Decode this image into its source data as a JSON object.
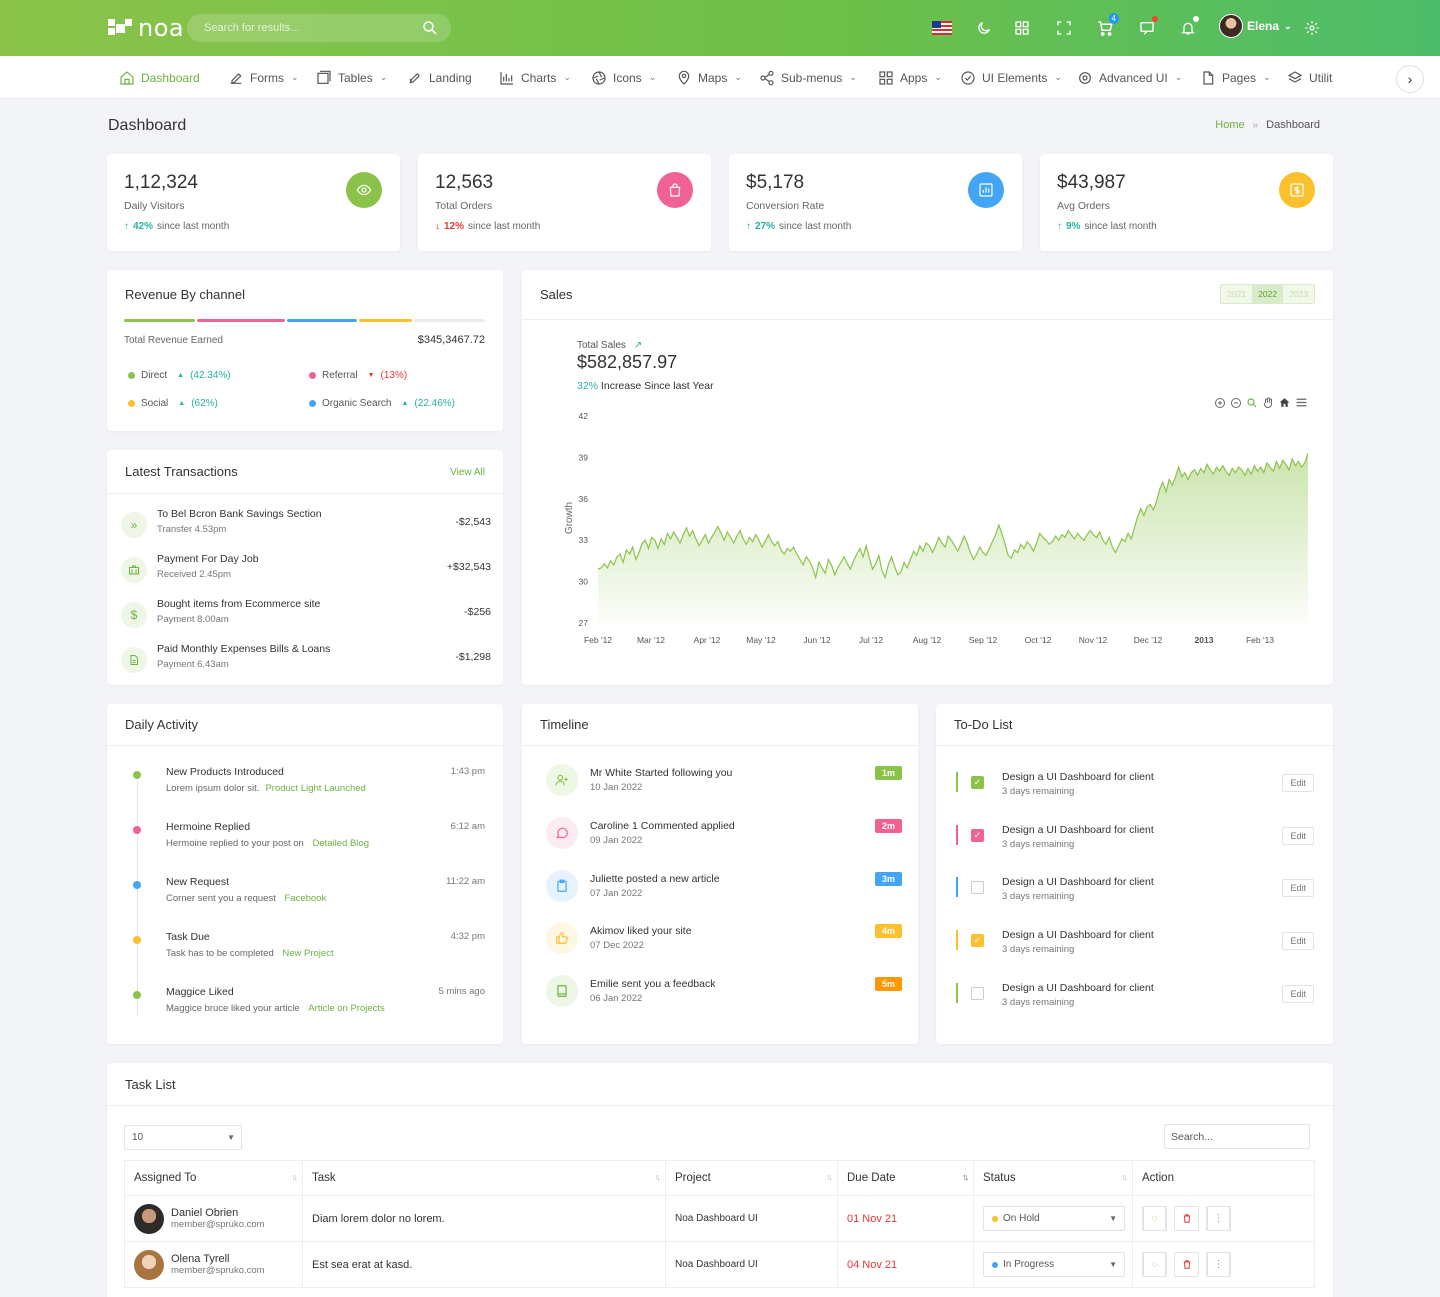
{
  "header": {
    "logo_text": "noa",
    "search_placeholder": "Search for results...",
    "cart_count": "4",
    "user_name": "Elena"
  },
  "nav": {
    "items": [
      {
        "label": "Dashboard",
        "icon": "home-icon"
      },
      {
        "label": "Forms",
        "icon": "edit-icon"
      },
      {
        "label": "Tables",
        "icon": "table-icon"
      },
      {
        "label": "Landing",
        "icon": "rocket-icon"
      },
      {
        "label": "Charts",
        "icon": "chart-icon"
      },
      {
        "label": "Icons",
        "icon": "aperture-icon"
      },
      {
        "label": "Maps",
        "icon": "map-pin-icon"
      },
      {
        "label": "Sub-menus",
        "icon": "share-icon"
      },
      {
        "label": "Apps",
        "icon": "grid-icon"
      },
      {
        "label": "UI Elements",
        "icon": "badge-icon"
      },
      {
        "label": "Advanced UI",
        "icon": "settings-icon"
      },
      {
        "label": "Pages",
        "icon": "file-icon"
      },
      {
        "label": "Utilit",
        "icon": "layers-icon"
      }
    ]
  },
  "page": {
    "title": "Dashboard",
    "breadcrumb_home": "Home",
    "breadcrumb_current": "Dashboard"
  },
  "stats": [
    {
      "value": "1,12,324",
      "label": "Daily Visitors",
      "pct": "42%",
      "since": "since last month",
      "color": "#8bc34a"
    },
    {
      "value": "12,563",
      "label": "Total Orders",
      "pct": "12%",
      "since": "since last month",
      "color": "#f06292"
    },
    {
      "value": "$5,178",
      "label": "Conversion Rate",
      "pct": "27%",
      "since": "since last month",
      "color": "#42a5f5"
    },
    {
      "value": "$43,987",
      "label": "Avg Orders",
      "pct": "9%",
      "since": "since last month",
      "color": "#fbc02d"
    }
  ],
  "revenue": {
    "title": "Revenue By channel",
    "total_label": "Total Revenue Earned",
    "total_value": "$345,3467.72",
    "channels": [
      {
        "name": "Direct",
        "pct": "(42.34%)",
        "color": "#8bc34a"
      },
      {
        "name": "Referral",
        "pct": "(13%)",
        "color": "#f06292"
      },
      {
        "name": "Social",
        "pct": "(62%)",
        "color": "#fbc02d"
      },
      {
        "name": "Organic Search",
        "pct": "(22.46%)",
        "color": "#42a5f5"
      }
    ]
  },
  "transactions": {
    "title": "Latest Transactions",
    "view_all": "View All",
    "items": [
      {
        "pre": "To Bel Bcron Bank ",
        "bold": "Savings Section",
        "sub": "Transfer 4.53pm",
        "amount": "-$2,543"
      },
      {
        "pre": "Payment For  ",
        "bold": "Day Job",
        "sub": "Received 2.45pm",
        "amount": "+$32,543"
      },
      {
        "pre": "Bought items from ",
        "bold": "Ecommerce site",
        "sub": "Payment 8.00am",
        "amount": "-$256"
      },
      {
        "pre": "Paid Monthly Expenses ",
        "bold": "Bills & Loans",
        "sub": "Payment 6.43am",
        "amount": "-$1,298"
      }
    ]
  },
  "sales": {
    "title": "Sales",
    "years": [
      "2021",
      "2022",
      "2023"
    ],
    "total_label": "Total Sales",
    "total_value": "$582,857.97",
    "increase_pct": "32%",
    "increase_text": " Increase Since last Year"
  },
  "chart_data": {
    "type": "area",
    "title": "",
    "xlabel": "",
    "ylabel": "Growth",
    "ylim": [
      27,
      42
    ],
    "yticks": [
      27,
      30,
      33,
      36,
      39,
      42
    ],
    "xticks": [
      "Feb '12",
      "Mar '12",
      "Apr '12",
      "May '12",
      "Jun '12",
      "Jul '12",
      "Aug '12",
      "Sep '12",
      "Oct '12",
      "Nov '12",
      "Dec '12",
      "2013",
      "Feb '13"
    ],
    "series": [
      {
        "values": [
          30.9,
          31.0,
          31.3,
          31.0,
          31.5,
          31.2,
          31.8,
          32.0,
          31.4,
          32.3,
          32.0,
          32.5,
          31.6,
          32.1,
          32.8,
          33.0,
          32.4,
          33.2,
          33.0,
          32.4,
          33.1,
          32.7,
          33.5,
          33.1,
          33.6,
          33.2,
          32.8,
          33.4,
          33.9,
          33.3,
          33.7,
          33.1,
          32.6,
          33.0,
          33.4,
          32.8,
          33.2,
          33.6,
          34.0,
          33.5,
          33.0,
          33.6,
          33.2,
          32.8,
          33.3,
          33.7,
          33.1,
          32.7,
          33.2,
          32.9,
          33.4,
          33.0,
          32.5,
          32.9,
          33.4,
          32.9,
          32.6,
          32.9,
          32.3,
          32.0,
          32.4,
          32.2,
          32.5,
          32.0,
          31.6,
          31.2,
          31.8,
          31.5,
          31.0,
          30.3,
          31.4,
          31.0,
          30.6,
          31.6,
          31.2,
          30.5,
          31.0,
          31.4,
          31.8,
          31.3,
          30.9,
          31.5,
          32.0,
          32.4,
          31.8,
          32.6,
          31.7,
          30.9,
          31.3,
          31.9,
          30.8,
          30.3,
          31.2,
          31.8,
          31.1,
          30.5,
          30.7,
          31.4,
          31.0,
          31.6,
          32.2,
          31.9,
          32.6,
          32.2,
          32.8,
          32.6,
          32.1,
          32.6,
          33.2,
          32.8,
          32.5,
          33.3,
          33.0,
          32.6,
          32.2,
          32.7,
          33.3,
          32.8,
          32.1,
          31.6,
          32.0,
          32.5,
          32.1,
          31.9,
          32.4,
          32.9,
          33.4,
          34.1,
          33.5,
          32.7,
          31.9,
          31.7,
          32.3,
          32.1,
          32.7,
          32.4,
          32.9,
          32.6,
          32.2,
          32.8,
          33.5,
          33.2,
          33.0,
          32.7,
          32.9,
          33.3,
          33.0,
          33.4,
          33.2,
          33.7,
          33.4,
          33.1,
          33.5,
          33.2,
          33.0,
          33.4,
          33.7,
          33.4,
          33.2,
          33.6,
          33.0,
          32.7,
          33.2,
          32.5,
          32.1,
          32.6,
          33.1,
          32.9,
          33.5,
          33.1,
          33.9,
          34.7,
          35.3,
          34.8,
          35.4,
          35.6,
          35.2,
          35.8,
          36.7,
          37.2,
          36.5,
          37.4,
          37.0,
          37.6,
          38.3,
          37.6,
          37.9,
          37.4,
          37.9,
          38.1,
          37.7,
          38.2,
          37.9,
          38.5,
          38.1,
          37.8,
          38.3,
          38.0,
          38.4,
          38.0,
          37.7,
          38.2,
          37.9,
          38.3,
          38.1,
          37.7,
          38.2,
          37.8,
          38.4,
          38.0,
          38.3,
          37.9,
          38.6,
          38.3,
          38.0,
          38.7,
          38.2,
          38.8,
          38.5,
          38.1,
          38.9,
          38.4,
          38.7,
          38.3,
          38.6,
          39.3
        ]
      }
    ]
  },
  "activity": {
    "title": "Daily Activity",
    "items": [
      {
        "title": "New Products Introduced",
        "sub": "Lorem ipsum dolor sit.",
        "link": "Product Light Launched",
        "time": "1:43 pm",
        "color": "#8bc34a"
      },
      {
        "title": "Hermoine Replied",
        "sub": "Hermoine replied to your post on ",
        "link": "Detailed Blog",
        "time": "6:12 am",
        "color": "#f06292"
      },
      {
        "title": "New Request",
        "sub": "Corner sent you a request ",
        "link": "Facebook",
        "time": "11:22 am",
        "color": "#42a5f5"
      },
      {
        "title": "Task Due",
        "sub": "Task has to be completed ",
        "link": "New Project",
        "time": "4:32 pm",
        "color": "#fbc02d"
      },
      {
        "title": "Maggice Liked",
        "sub": "Maggice bruce liked your article ",
        "link": "Article on Projects",
        "time": "5 mins ago",
        "color": "#8bc34a"
      }
    ]
  },
  "timeline": {
    "title": "Timeline",
    "items": [
      {
        "title": "Mr White Started following you",
        "date": "10 Jan 2022",
        "badge": "1m",
        "color": "#8bc34a",
        "bg": "#eef6e6",
        "icon": "user-plus-icon"
      },
      {
        "title": "Caroline 1 Commented applied",
        "date": "09 Jan 2022",
        "badge": "2m",
        "color": "#f06292",
        "bg": "#fdebf2",
        "icon": "comment-icon"
      },
      {
        "title": "Juliette posted a new article",
        "date": "07 Jan 2022",
        "badge": "3m",
        "color": "#42a5f5",
        "bg": "#e6f2fd",
        "icon": "clipboard-icon"
      },
      {
        "title": "Akimov liked your site",
        "date": "07 Dec 2022",
        "badge": "4m",
        "color": "#fbc02d",
        "bg": "#fef7e3",
        "icon": "thumbs-up-icon"
      },
      {
        "title": "Emilie sent you a feedback",
        "date": "06 Jan 2022",
        "badge": "5m",
        "color": "#ff9800",
        "bg": "#eef6e6",
        "icon": "book-icon"
      }
    ]
  },
  "todo": {
    "title": "To-Do List",
    "edit_label": "Edit",
    "items": [
      {
        "title": "Design a UI Dashboard for client",
        "sub": "3 days remaining",
        "checked": true,
        "color": "#8bc34a"
      },
      {
        "title": "Design a UI Dashboard for client",
        "sub": "3 days remaining",
        "checked": true,
        "color": "#f06292"
      },
      {
        "title": "Design a UI Dashboard for client",
        "sub": "3 days remaining",
        "checked": false,
        "color": "#42a5f5"
      },
      {
        "title": "Design a UI Dashboard for client",
        "sub": "3 days remaining",
        "checked": true,
        "color": "#fbc02d"
      },
      {
        "title": "Design a UI Dashboard for client",
        "sub": "3 days remaining",
        "checked": false,
        "color": "#8bc34a"
      }
    ]
  },
  "tasks": {
    "title": "Task List",
    "page_size": "10",
    "search_placeholder": "Search...",
    "columns": [
      "Assigned To",
      "Task",
      "Project",
      "Due Date",
      "Status",
      "Action"
    ],
    "rows": [
      {
        "name": "Daniel Obrien",
        "email": "member@spruko.com",
        "task": "Diam lorem dolor no lorem.",
        "project": "Noa Dashboard UI",
        "due": "01 Nov 21",
        "status": "On Hold",
        "status_color": "#fbc02d"
      },
      {
        "name": "Olena Tyrell",
        "email": "member@spruko.com",
        "task": "Est sea erat at kasd.",
        "project": "Noa Dashboard UI",
        "due": "04 Nov 21",
        "status": "In Progress",
        "status_color": "#42a5f5"
      }
    ]
  }
}
